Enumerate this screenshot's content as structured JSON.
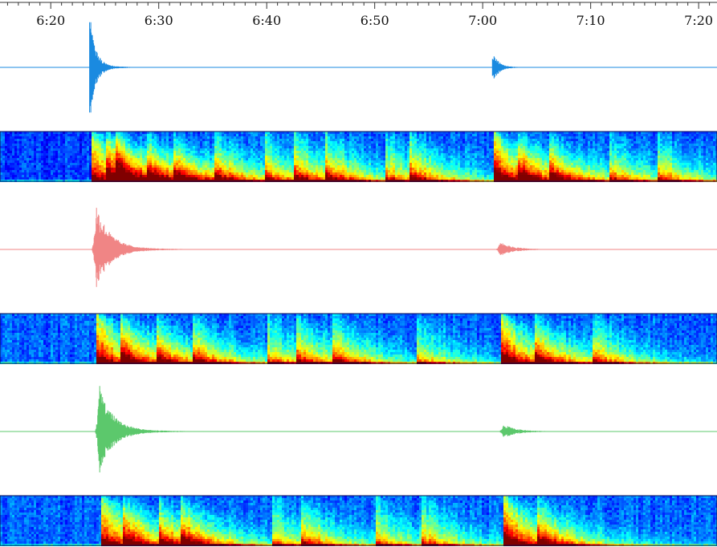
{
  "chart_data": {
    "type": "seismogram-spectrogram",
    "title": "",
    "xlabel": "",
    "ylabel": "",
    "x_axis": {
      "position": "top",
      "range_minutes": [
        375.3,
        441.7
      ],
      "ticks": [
        {
          "minute": 380,
          "label": "6:20"
        },
        {
          "minute": 390,
          "label": "6:30"
        },
        {
          "minute": 400,
          "label": "6:40"
        },
        {
          "minute": 410,
          "label": "6:50"
        },
        {
          "minute": 420,
          "label": "7:00"
        },
        {
          "minute": 430,
          "label": "7:10"
        },
        {
          "minute": 440,
          "label": "7:20"
        }
      ],
      "minor_tick_step_minutes": 1
    },
    "channels": [
      {
        "color": "#1a8ae0",
        "events": [
          {
            "minute": 383.6,
            "relative_amplitude": 1.0,
            "decay": "fast"
          },
          {
            "minute": 420.9,
            "relative_amplitude": 0.3,
            "decay": "fast"
          }
        ],
        "spectrogram_onsets_minutes": [
          383.6,
          385.0,
          386.0,
          388.8,
          391.2,
          395.0,
          399.8,
          402.5,
          405.4,
          410.9,
          413.2,
          420.9,
          423.2,
          426.0,
          431.6,
          436.0
        ]
      },
      {
        "color": "#f08585",
        "events": [
          {
            "minute": 384.2,
            "relative_amplitude": 1.0,
            "decay": "slow"
          },
          {
            "minute": 421.6,
            "relative_amplitude": 0.16,
            "decay": "slow"
          }
        ],
        "spectrogram_onsets_minutes": [
          384.2,
          386.4,
          389.6,
          393.0,
          400.0,
          402.6,
          406.0,
          413.7,
          421.6,
          424.6,
          430.0
        ]
      },
      {
        "color": "#5cc86c",
        "events": [
          {
            "minute": 384.5,
            "relative_amplitude": 1.0,
            "decay": "slow"
          },
          {
            "minute": 421.9,
            "relative_amplitude": 0.16,
            "decay": "slow"
          }
        ],
        "spectrogram_onsets_minutes": [
          384.5,
          386.5,
          390.0,
          392.0,
          400.5,
          403.0,
          410.0,
          414.3,
          421.9,
          425.0
        ]
      }
    ],
    "grid": false,
    "legend": "none",
    "colormap": "jet"
  }
}
